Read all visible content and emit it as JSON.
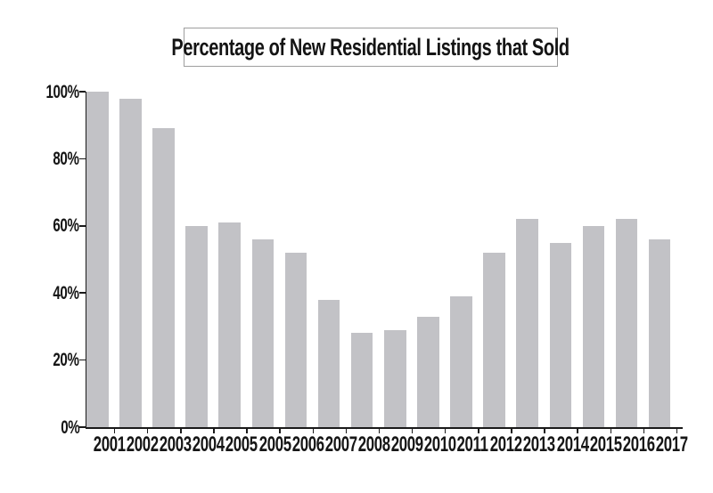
{
  "chart_data": {
    "type": "bar",
    "title": "Percentage of New Residential Listings that Sold",
    "categories": [
      "2001",
      "2002",
      "2003",
      "2004",
      "2005",
      "2005",
      "2006",
      "2007",
      "2008",
      "2009",
      "2010",
      "2011",
      "2012",
      "2013",
      "2014",
      "2015",
      "2016",
      "2017"
    ],
    "values": [
      100,
      98,
      89,
      60,
      61,
      56,
      52,
      38,
      28,
      29,
      33,
      39,
      52,
      62,
      55,
      60,
      62,
      56
    ],
    "xlabel": "",
    "ylabel": "",
    "ylim": [
      0,
      100
    ],
    "y_tick_values": [
      0,
      20,
      40,
      60,
      80,
      100
    ],
    "y_tick_labels": [
      "0%",
      "20%",
      "40%",
      "60%",
      "80%",
      "100%"
    ],
    "grid": false,
    "legend_position": "none",
    "bar_color": "#c2c2c6",
    "axis_color": "#1a1a1a",
    "title_border_color": "#9e9e9e"
  }
}
